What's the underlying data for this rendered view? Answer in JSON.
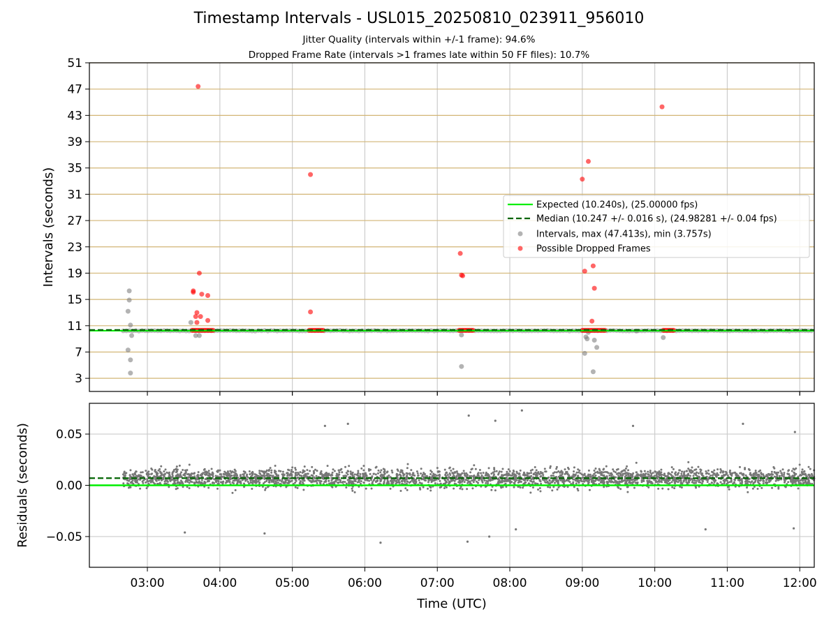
{
  "figure": {
    "title": "Timestamp Intervals - USL015_20250810_023911_956010",
    "subtitle_1": "Jitter Quality (intervals within +/-1 frame): 94.6%",
    "subtitle_2": "Dropped Frame Rate (intervals >1 frames late within 50 FF files): 10.7%"
  },
  "chart_data": [
    {
      "type": "scatter",
      "panel": "intervals",
      "ylabel": "Intervals (seconds)",
      "xlim": [
        "02:12",
        "12:12"
      ],
      "ylim": [
        1,
        51
      ],
      "yticks": [
        3,
        7,
        11,
        15,
        19,
        23,
        27,
        31,
        35,
        39,
        43,
        47,
        51
      ],
      "xticks": [
        "03:00",
        "04:00",
        "05:00",
        "06:00",
        "07:00",
        "08:00",
        "09:00",
        "10:00",
        "11:00",
        "12:00"
      ],
      "grid": true,
      "legend_position": "center-right",
      "colors": {
        "expected": "#00ee00",
        "median": "#006400",
        "intervals": "#808080",
        "dropped": "#ff0000",
        "hgrid": "#d2b574",
        "vgrid": "#cccccc"
      },
      "expected_value": 10.24,
      "median_value": 10.247,
      "series": [
        {
          "name": "Expected (10.240s), (25.00000 fps)",
          "kind": "line",
          "y": 10.24
        },
        {
          "name": "Median (10.247 +/- 0.016 s), (24.98281 +/- 0.04 fps)",
          "kind": "dashed-line",
          "y": 10.247
        },
        {
          "name": "Intervals, max (47.413s), min (3.757s)",
          "kind": "points",
          "band": {
            "x_start": "02:40",
            "x_end": "12:12",
            "y": 10.24
          },
          "points": [
            [
              "02:45",
              16.3
            ],
            [
              "02:45",
              14.9
            ],
            [
              "02:44",
              13.2
            ],
            [
              "02:46",
              11.1
            ],
            [
              "02:47",
              9.5
            ],
            [
              "02:44",
              7.3
            ],
            [
              "02:46",
              5.8
            ],
            [
              "02:46",
              3.8
            ],
            [
              "03:36",
              11.5
            ],
            [
              "03:40",
              9.5
            ],
            [
              "03:43",
              9.5
            ],
            [
              "07:20",
              9.6
            ],
            [
              "07:20",
              4.8
            ],
            [
              "09:02",
              6.8
            ],
            [
              "09:03",
              9.3
            ],
            [
              "09:04",
              9.0
            ],
            [
              "09:05",
              10.0
            ],
            [
              "09:09",
              4.0
            ],
            [
              "09:10",
              8.8
            ],
            [
              "09:12",
              7.7
            ],
            [
              "09:45",
              10.2
            ],
            [
              "10:07",
              9.2
            ]
          ]
        },
        {
          "name": "Possible Dropped Frames",
          "kind": "points",
          "clusters": [
            {
              "x_start": "03:37",
              "x_end": "03:55",
              "y": 10.3
            },
            {
              "x_start": "05:14",
              "x_end": "05:26",
              "y": 10.3
            },
            {
              "x_start": "07:18",
              "x_end": "07:31",
              "y": 10.3
            },
            {
              "x_start": "09:00",
              "x_end": "09:19",
              "y": 10.3
            },
            {
              "x_start": "10:07",
              "x_end": "10:17",
              "y": 10.3
            }
          ],
          "points": [
            [
              "03:42",
              47.4
            ],
            [
              "03:43",
              19.0
            ],
            [
              "03:38",
              16.3
            ],
            [
              "03:38",
              16.1
            ],
            [
              "03:45",
              15.8
            ],
            [
              "03:50",
              15.6
            ],
            [
              "03:41",
              13.0
            ],
            [
              "03:40",
              12.4
            ],
            [
              "03:44",
              12.4
            ],
            [
              "03:41",
              11.5
            ],
            [
              "03:50",
              11.8
            ],
            [
              "05:15",
              34.0
            ],
            [
              "05:15",
              13.1
            ],
            [
              "07:19",
              22.0
            ],
            [
              "07:20",
              18.7
            ],
            [
              "07:21",
              18.6
            ],
            [
              "09:00",
              33.3
            ],
            [
              "09:05",
              36.0
            ],
            [
              "09:02",
              19.3
            ],
            [
              "09:09",
              20.1
            ],
            [
              "09:10",
              16.7
            ],
            [
              "09:08",
              11.7
            ],
            [
              "10:06",
              44.3
            ]
          ]
        }
      ]
    },
    {
      "type": "scatter",
      "panel": "residuals",
      "xlabel": "Time (UTC)",
      "ylabel": "Residuals (seconds)",
      "xlim": [
        "02:12",
        "12:12"
      ],
      "ylim": [
        -0.08,
        0.08
      ],
      "yticks": [
        0.05,
        0.0,
        -0.05
      ],
      "ytick_labels": [
        "0.05",
        "0.00",
        "−0.05"
      ],
      "xticks": [
        "03:00",
        "04:00",
        "05:00",
        "06:00",
        "07:00",
        "08:00",
        "09:00",
        "10:00",
        "11:00",
        "12:00"
      ],
      "grid": true,
      "expected_value": 0.0,
      "median_value": 0.007,
      "colors": {
        "points": "#777777",
        "expected": "#00ee00",
        "median": "#006400"
      },
      "residual_distribution": {
        "x_start": "02:40",
        "x_end": "12:12",
        "center": 0.007,
        "spread": 0.035,
        "count": 3100
      },
      "outliers": [
        [
          "07:26",
          0.068
        ],
        [
          "08:10",
          0.073
        ],
        [
          "08:05",
          -0.043
        ],
        [
          "07:25",
          -0.055
        ],
        [
          "06:13",
          -0.056
        ],
        [
          "07:43",
          -0.05
        ],
        [
          "04:37",
          -0.047
        ],
        [
          "03:31",
          -0.046
        ],
        [
          "05:46",
          0.06
        ],
        [
          "05:27",
          0.058
        ],
        [
          "07:48",
          0.063
        ],
        [
          "09:42",
          0.058
        ],
        [
          "11:13",
          0.06
        ],
        [
          "11:56",
          0.052
        ],
        [
          "10:42",
          -0.043
        ],
        [
          "11:55",
          -0.042
        ]
      ]
    }
  ]
}
